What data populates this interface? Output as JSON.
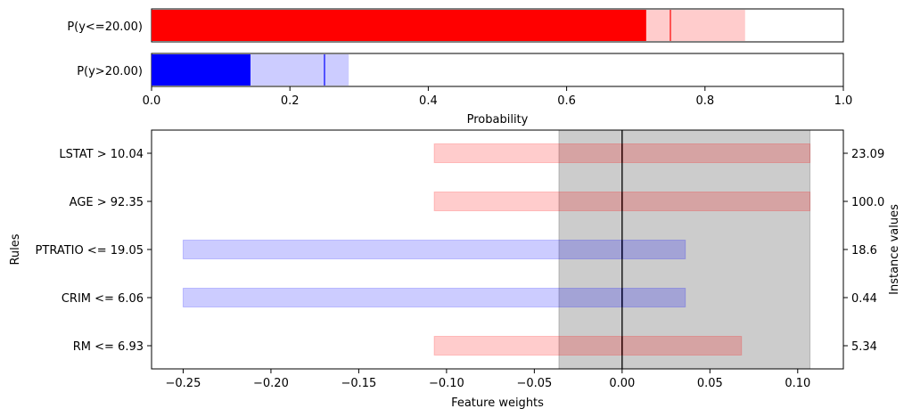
{
  "chart_data": [
    {
      "type": "bar",
      "orientation": "horizontal",
      "categories": [
        "P(y<=20.00)",
        "P(y>20.00)"
      ],
      "series": [
        {
          "color": "#ff0000",
          "values": [
            0.715,
            0.143
          ]
        },
        {
          "color": "#ffcccc",
          "low": [
            0.715,
            0.143
          ],
          "high": [
            0.858,
            0.285
          ]
        }
      ],
      "markers": [
        0.75,
        0.25
      ],
      "colors": [
        "#ff0000",
        "#0000ff"
      ],
      "light_colors": [
        "#ffcccc",
        "#ccccff"
      ],
      "xlim": [
        0.0,
        1.0
      ],
      "xticks": [
        "0.0",
        "0.2",
        "0.4",
        "0.6",
        "0.8",
        "1.0"
      ],
      "xlabel": "Probability",
      "grid": false
    },
    {
      "type": "bar",
      "orientation": "horizontal",
      "categories": [
        "LSTAT > 10.04",
        "AGE > 92.35",
        "PTRATIO <= 19.05",
        "CRIM <= 6.06",
        "RM <= 6.93"
      ],
      "instance_values": [
        "23.09",
        "100.0",
        "18.6",
        "0.44",
        "5.34"
      ],
      "intervals": [
        {
          "low": -0.107,
          "high": 0.107,
          "weight": 0.0,
          "color": "#ffcccc"
        },
        {
          "low": -0.107,
          "high": 0.107,
          "weight": 0.0,
          "color": "#ffcccc"
        },
        {
          "low": -0.25,
          "high": 0.036,
          "weight": 0.0,
          "color": "#ccccff"
        },
        {
          "low": -0.25,
          "high": 0.036,
          "weight": 0.0,
          "color": "#ccccff"
        },
        {
          "low": -0.107,
          "high": 0.068,
          "weight": 0.0,
          "color": "#ffcccc"
        }
      ],
      "weight_colors": [
        "#ff0000",
        "#ff0000",
        "#0000ff",
        "#0000ff",
        "#ff0000"
      ],
      "shaded_region": [
        -0.036,
        0.107
      ],
      "zero_line": 0.0,
      "xlim": [
        -0.268,
        0.126
      ],
      "xticks": [
        -0.25,
        -0.2,
        -0.15,
        -0.1,
        -0.05,
        0.0,
        0.05,
        0.1
      ],
      "xtick_labels": [
        "−0.25",
        "−0.20",
        "−0.15",
        "−0.10",
        "−0.05",
        "0.00",
        "0.05",
        "0.10"
      ],
      "xlabel": "Feature weights",
      "ylabel": "Rules",
      "ylabel_right": "Instance values",
      "grid": false
    }
  ]
}
